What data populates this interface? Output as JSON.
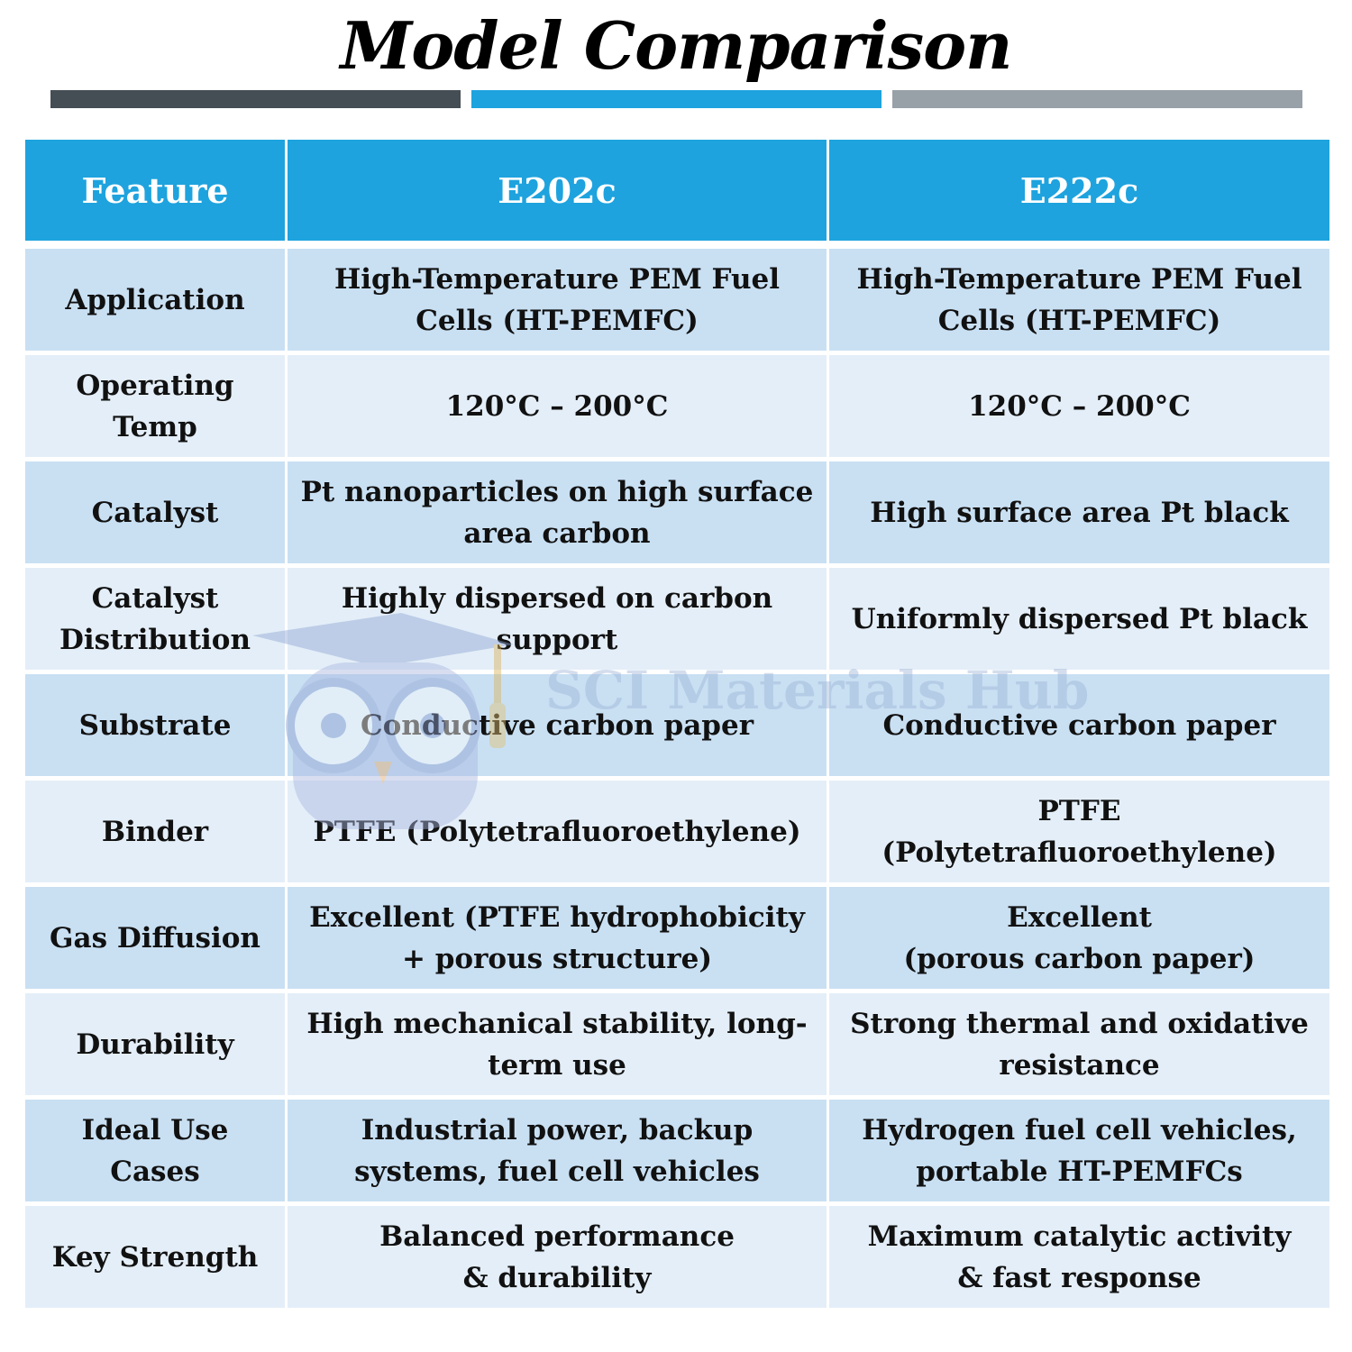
{
  "title": "Model Comparison",
  "colors": {
    "bar_left": "#454d55",
    "bar_middle": "#1ea3de",
    "bar_right": "#98a0a8",
    "header_bg": "#1ea3de",
    "row_light": "#e4eef8",
    "row_dark": "#c9e0f3"
  },
  "table": {
    "headers": [
      "Feature",
      "E202c",
      "E222c"
    ],
    "rows": [
      {
        "feature": "Application",
        "e202c": "High-Temperature PEM Fuel\nCells (HT-PEMFC)",
        "e222c": "High-Temperature PEM Fuel\nCells (HT-PEMFC)"
      },
      {
        "feature": "Operating\nTemp",
        "e202c": "120°C – 200°C",
        "e222c": "120°C – 200°C"
      },
      {
        "feature": "Catalyst",
        "e202c": "Pt nanoparticles on high surface\narea carbon",
        "e222c": "High surface area Pt black"
      },
      {
        "feature": "Catalyst\nDistribution",
        "e202c": "Highly dispersed on carbon\nsupport",
        "e222c": "Uniformly dispersed Pt black"
      },
      {
        "feature": "Substrate",
        "e202c": "Conductive carbon paper",
        "e222c": "Conductive carbon paper"
      },
      {
        "feature": "Binder",
        "e202c": "PTFE (Polytetrafluoroethylene)",
        "e222c": "PTFE\n(Polytetrafluoroethylene)"
      },
      {
        "feature": "Gas Diffusion",
        "e202c": "Excellent (PTFE hydrophobicity\n+ porous structure)",
        "e222c": "Excellent\n(porous carbon paper)"
      },
      {
        "feature": "Durability",
        "e202c": "High mechanical stability, long-\nterm use",
        "e222c": "Strong thermal and oxidative\nresistance"
      },
      {
        "feature": "Ideal Use\nCases",
        "e202c": "Industrial power, backup\nsystems, fuel cell vehicles",
        "e222c": "Hydrogen fuel cell vehicles,\nportable HT-PEMFCs"
      },
      {
        "feature": "Key Strength",
        "e202c": "Balanced performance\n& durability",
        "e222c": "Maximum catalytic activity\n& fast response"
      }
    ]
  },
  "watermark": {
    "text": "SCI Materials Hub",
    "icon": "graduation-owl-logo"
  }
}
